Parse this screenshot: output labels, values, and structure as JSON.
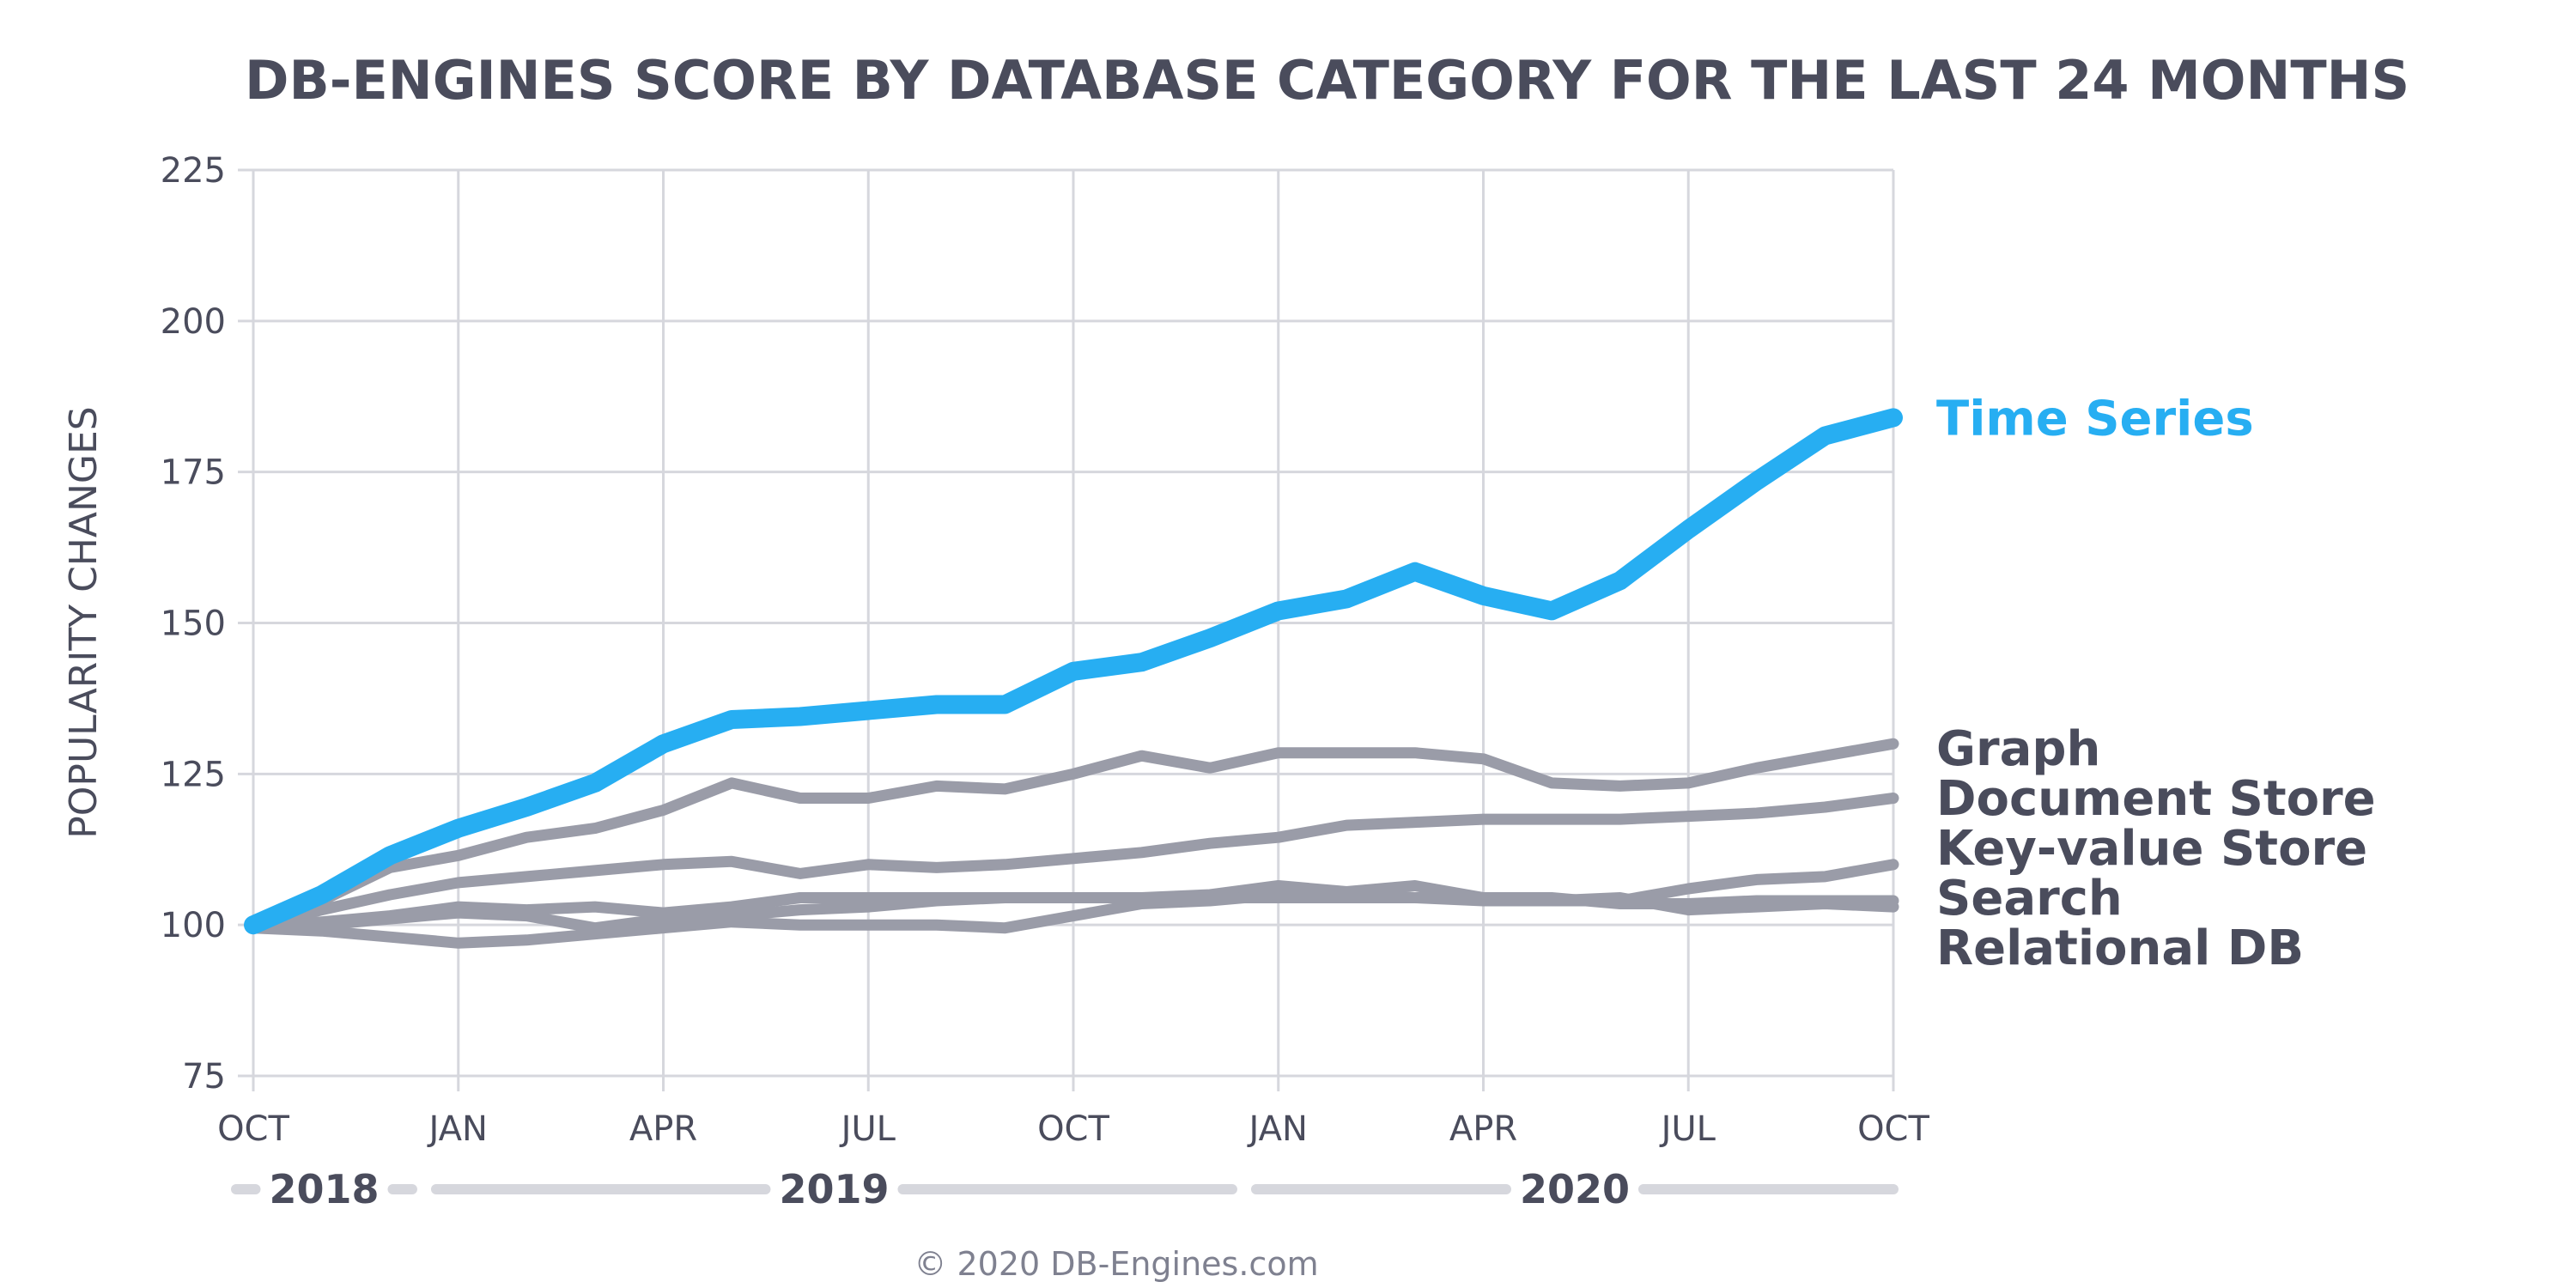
{
  "chart_data": {
    "type": "line",
    "title": "DB-ENGINES SCORE BY DATABASE CATEGORY FOR THE LAST 24 MONTHS",
    "ylabel": "POPULARITY CHANGES",
    "ylim": [
      75,
      225
    ],
    "yticks": [
      75,
      100,
      125,
      150,
      175,
      200,
      225
    ],
    "x_months": [
      "2018-10",
      "2018-11",
      "2018-12",
      "2019-01",
      "2019-02",
      "2019-03",
      "2019-04",
      "2019-05",
      "2019-06",
      "2019-07",
      "2019-08",
      "2019-09",
      "2019-10",
      "2019-11",
      "2019-12",
      "2020-01",
      "2020-02",
      "2020-03",
      "2020-04",
      "2020-05",
      "2020-06",
      "2020-07",
      "2020-08",
      "2020-09",
      "2020-10"
    ],
    "x_tick_labels": [
      "OCT",
      "JAN",
      "APR",
      "JUL",
      "OCT",
      "JAN",
      "APR",
      "JUL",
      "OCT"
    ],
    "x_tick_months": [
      "2018-10",
      "2019-01",
      "2019-04",
      "2019-07",
      "2019-10",
      "2020-01",
      "2020-04",
      "2020-07",
      "2020-10"
    ],
    "years": [
      {
        "label": "2018",
        "from": "2018-10",
        "to": "2018-12"
      },
      {
        "label": "2019",
        "from": "2019-01",
        "to": "2019-12"
      },
      {
        "label": "2020",
        "from": "2020-01",
        "to": "2020-10"
      }
    ],
    "grid": true,
    "legend_placement": "right, at line ends",
    "series": [
      {
        "name": "Time Series",
        "color": "#27aef2",
        "highlight": true,
        "values": [
          100,
          105,
          111.5,
          116,
          119.5,
          123.5,
          130,
          134,
          134.5,
          135.5,
          136.5,
          136.5,
          142,
          143.5,
          147.5,
          152,
          154,
          158.5,
          154.5,
          152,
          157,
          165.5,
          173.5,
          181,
          184
        ]
      },
      {
        "name": "Graph",
        "color": "#9a9ca8",
        "values": [
          99.5,
          104,
          109.5,
          111.5,
          114.5,
          116,
          119,
          123.5,
          121,
          121,
          123,
          122.5,
          125,
          128,
          126,
          128.5,
          128.5,
          128.5,
          127.5,
          123.5,
          123,
          123.5,
          126,
          128,
          130
        ]
      },
      {
        "name": "Document Store",
        "color": "#9a9ca8",
        "values": [
          99.5,
          102.5,
          105,
          107,
          108,
          109,
          110,
          110.5,
          108.5,
          110,
          109.5,
          110,
          111,
          112,
          113.5,
          114.5,
          116.5,
          117,
          117.5,
          117.5,
          117.5,
          118,
          118.5,
          119.5,
          121
        ]
      },
      {
        "name": "Key-value Store",
        "color": "#9a9ca8",
        "values": [
          99.5,
          100.5,
          101.5,
          103,
          102.5,
          103,
          102,
          103,
          104.5,
          104.5,
          104.5,
          104.5,
          104.5,
          104.5,
          105,
          106.5,
          105.5,
          106.5,
          104.5,
          104,
          104,
          106,
          107.5,
          108,
          110
        ]
      },
      {
        "name": "Search",
        "color": "#9a9ca8",
        "values": [
          99.5,
          100,
          101,
          102,
          101.5,
          99.5,
          101,
          101.5,
          102.5,
          103,
          104,
          104.5,
          104.5,
          104.5,
          104.5,
          104.5,
          104.5,
          104.5,
          104.5,
          104.5,
          103.5,
          103.5,
          104,
          104,
          104
        ]
      },
      {
        "name": "Relational DB",
        "color": "#9a9ca8",
        "values": [
          99.5,
          99,
          98,
          97,
          97.5,
          98.5,
          99.5,
          100.5,
          100,
          100,
          100,
          99.5,
          101.5,
          103.5,
          104,
          105,
          105,
          104.5,
          104,
          104,
          104.5,
          102.5,
          103,
          103.5,
          103
        ]
      }
    ]
  },
  "copyright": "© 2020 DB-Engines.com",
  "colors": {
    "text": "#4a4c5c",
    "grid": "#d6d7dd",
    "muted": "#9a9ca8",
    "accent": "#27aef2",
    "year_bar": "#d6d7dd",
    "copyright": "#7f8190"
  }
}
